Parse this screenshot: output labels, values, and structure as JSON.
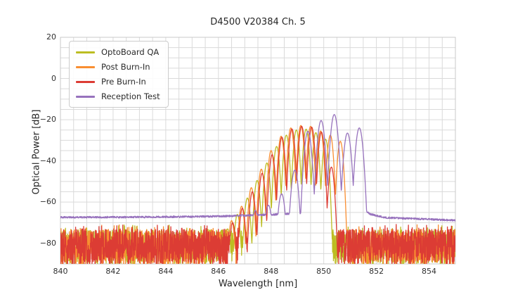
{
  "title": "D4500 V20384 Ch. 5",
  "chart_data": {
    "type": "line",
    "title": "D4500 V20384 Ch. 5",
    "xlabel": "Wavelength [nm]",
    "ylabel": "Optical Power [dB]",
    "xlim": [
      840,
      855
    ],
    "ylim": [
      -90,
      20
    ],
    "x_ticks": [
      {
        "v": 840,
        "label": "840"
      },
      {
        "v": 842,
        "label": "842"
      },
      {
        "v": 844,
        "label": "844"
      },
      {
        "v": 846,
        "label": "846"
      },
      {
        "v": 848,
        "label": "848"
      },
      {
        "v": 850,
        "label": "850"
      },
      {
        "v": 852,
        "label": "852"
      },
      {
        "v": 854,
        "label": "854"
      }
    ],
    "y_ticks": [
      {
        "v": 20,
        "label": "20"
      },
      {
        "v": 0,
        "label": "0"
      },
      {
        "v": -20,
        "label": "−20"
      },
      {
        "v": -40,
        "label": "−40"
      },
      {
        "v": -60,
        "label": "−60"
      },
      {
        "v": -80,
        "label": "−80"
      }
    ],
    "grid": {
      "on": true,
      "x_step_nm": 0.5,
      "y_step_db": 5,
      "color": "#dadada",
      "spine_color": "#c9c9c9"
    },
    "legend": {
      "position": "upper-left"
    },
    "series": [
      {
        "name": "OptoBoard QA",
        "color": "#bcbd22",
        "seed": 101,
        "mode_half_width_nm": 0.19,
        "valley_depth_db": 28,
        "modes": [
          [
            846.35,
            -73
          ],
          [
            846.72,
            -66
          ],
          [
            847.1,
            -58
          ],
          [
            847.47,
            -49.5
          ],
          [
            847.84,
            -41
          ],
          [
            848.21,
            -33
          ],
          [
            848.58,
            -27.5
          ],
          [
            848.96,
            -25
          ],
          [
            849.33,
            -24.6
          ],
          [
            849.7,
            -26.3
          ],
          [
            850.07,
            -29.5
          ]
        ],
        "noise": {
          "type": "spiky",
          "top_db": -73.2,
          "bottom_db": -90.5
        }
      },
      {
        "name": "Post Burn-In",
        "color": "#f98e31",
        "seed": 202,
        "mode_half_width_nm": 0.19,
        "valley_depth_db": 28,
        "modes": [
          [
            846.5,
            -69
          ],
          [
            846.88,
            -62
          ],
          [
            847.25,
            -53
          ],
          [
            847.63,
            -44
          ],
          [
            848.0,
            -35
          ],
          [
            848.38,
            -28
          ],
          [
            848.75,
            -24
          ],
          [
            849.13,
            -22.8
          ],
          [
            849.5,
            -23.2
          ],
          [
            849.88,
            -25.5
          ],
          [
            850.25,
            -27.5
          ],
          [
            850.63,
            -30.5
          ]
        ],
        "noise": {
          "type": "spiky",
          "top_db": -73.2,
          "bottom_db": -90.5
        }
      },
      {
        "name": "Pre Burn-In",
        "color": "#dc3c34",
        "seed": 303,
        "mode_half_width_nm": 0.19,
        "valley_depth_db": 28,
        "modes": [
          [
            846.54,
            -70
          ],
          [
            846.91,
            -63
          ],
          [
            847.29,
            -55
          ],
          [
            847.66,
            -46
          ],
          [
            848.04,
            -37
          ],
          [
            848.41,
            -28.5
          ],
          [
            848.79,
            -24.5
          ],
          [
            849.16,
            -23.2
          ],
          [
            849.54,
            -23.6
          ],
          [
            849.91,
            -26
          ],
          [
            850.29,
            -43
          ]
        ],
        "noise": {
          "type": "spiky",
          "top_db": -73.0,
          "bottom_db": -90.5
        }
      },
      {
        "name": "Reception Test",
        "color": "#9772bd",
        "seed": 404,
        "mode_half_width_nm": 0.25,
        "valley_depth_db": 33,
        "modes": [
          [
            846.9,
            -66
          ],
          [
            847.4,
            -64
          ],
          [
            847.9,
            -61.5
          ],
          [
            848.4,
            -56
          ],
          [
            848.9,
            -44.5
          ],
          [
            849.4,
            -25.7
          ],
          [
            849.9,
            -20.4
          ],
          [
            850.4,
            -17.5
          ],
          [
            850.9,
            -26.5
          ],
          [
            851.35,
            -24.0
          ]
        ],
        "noise": {
          "type": "smooth",
          "jitter_db": 0.45,
          "profile": [
            [
              840,
              -67.4
            ],
            [
              843,
              -67.3
            ],
            [
              845.5,
              -67.0
            ],
            [
              846.4,
              -66.8
            ],
            [
              847.2,
              -66.4
            ],
            [
              848.0,
              -66.1
            ],
            [
              851.5,
              -63.8
            ],
            [
              851.78,
              -65.9
            ],
            [
              852.3,
              -67.5
            ],
            [
              853.5,
              -68.1
            ],
            [
              855,
              -68.9
            ]
          ]
        }
      }
    ]
  }
}
